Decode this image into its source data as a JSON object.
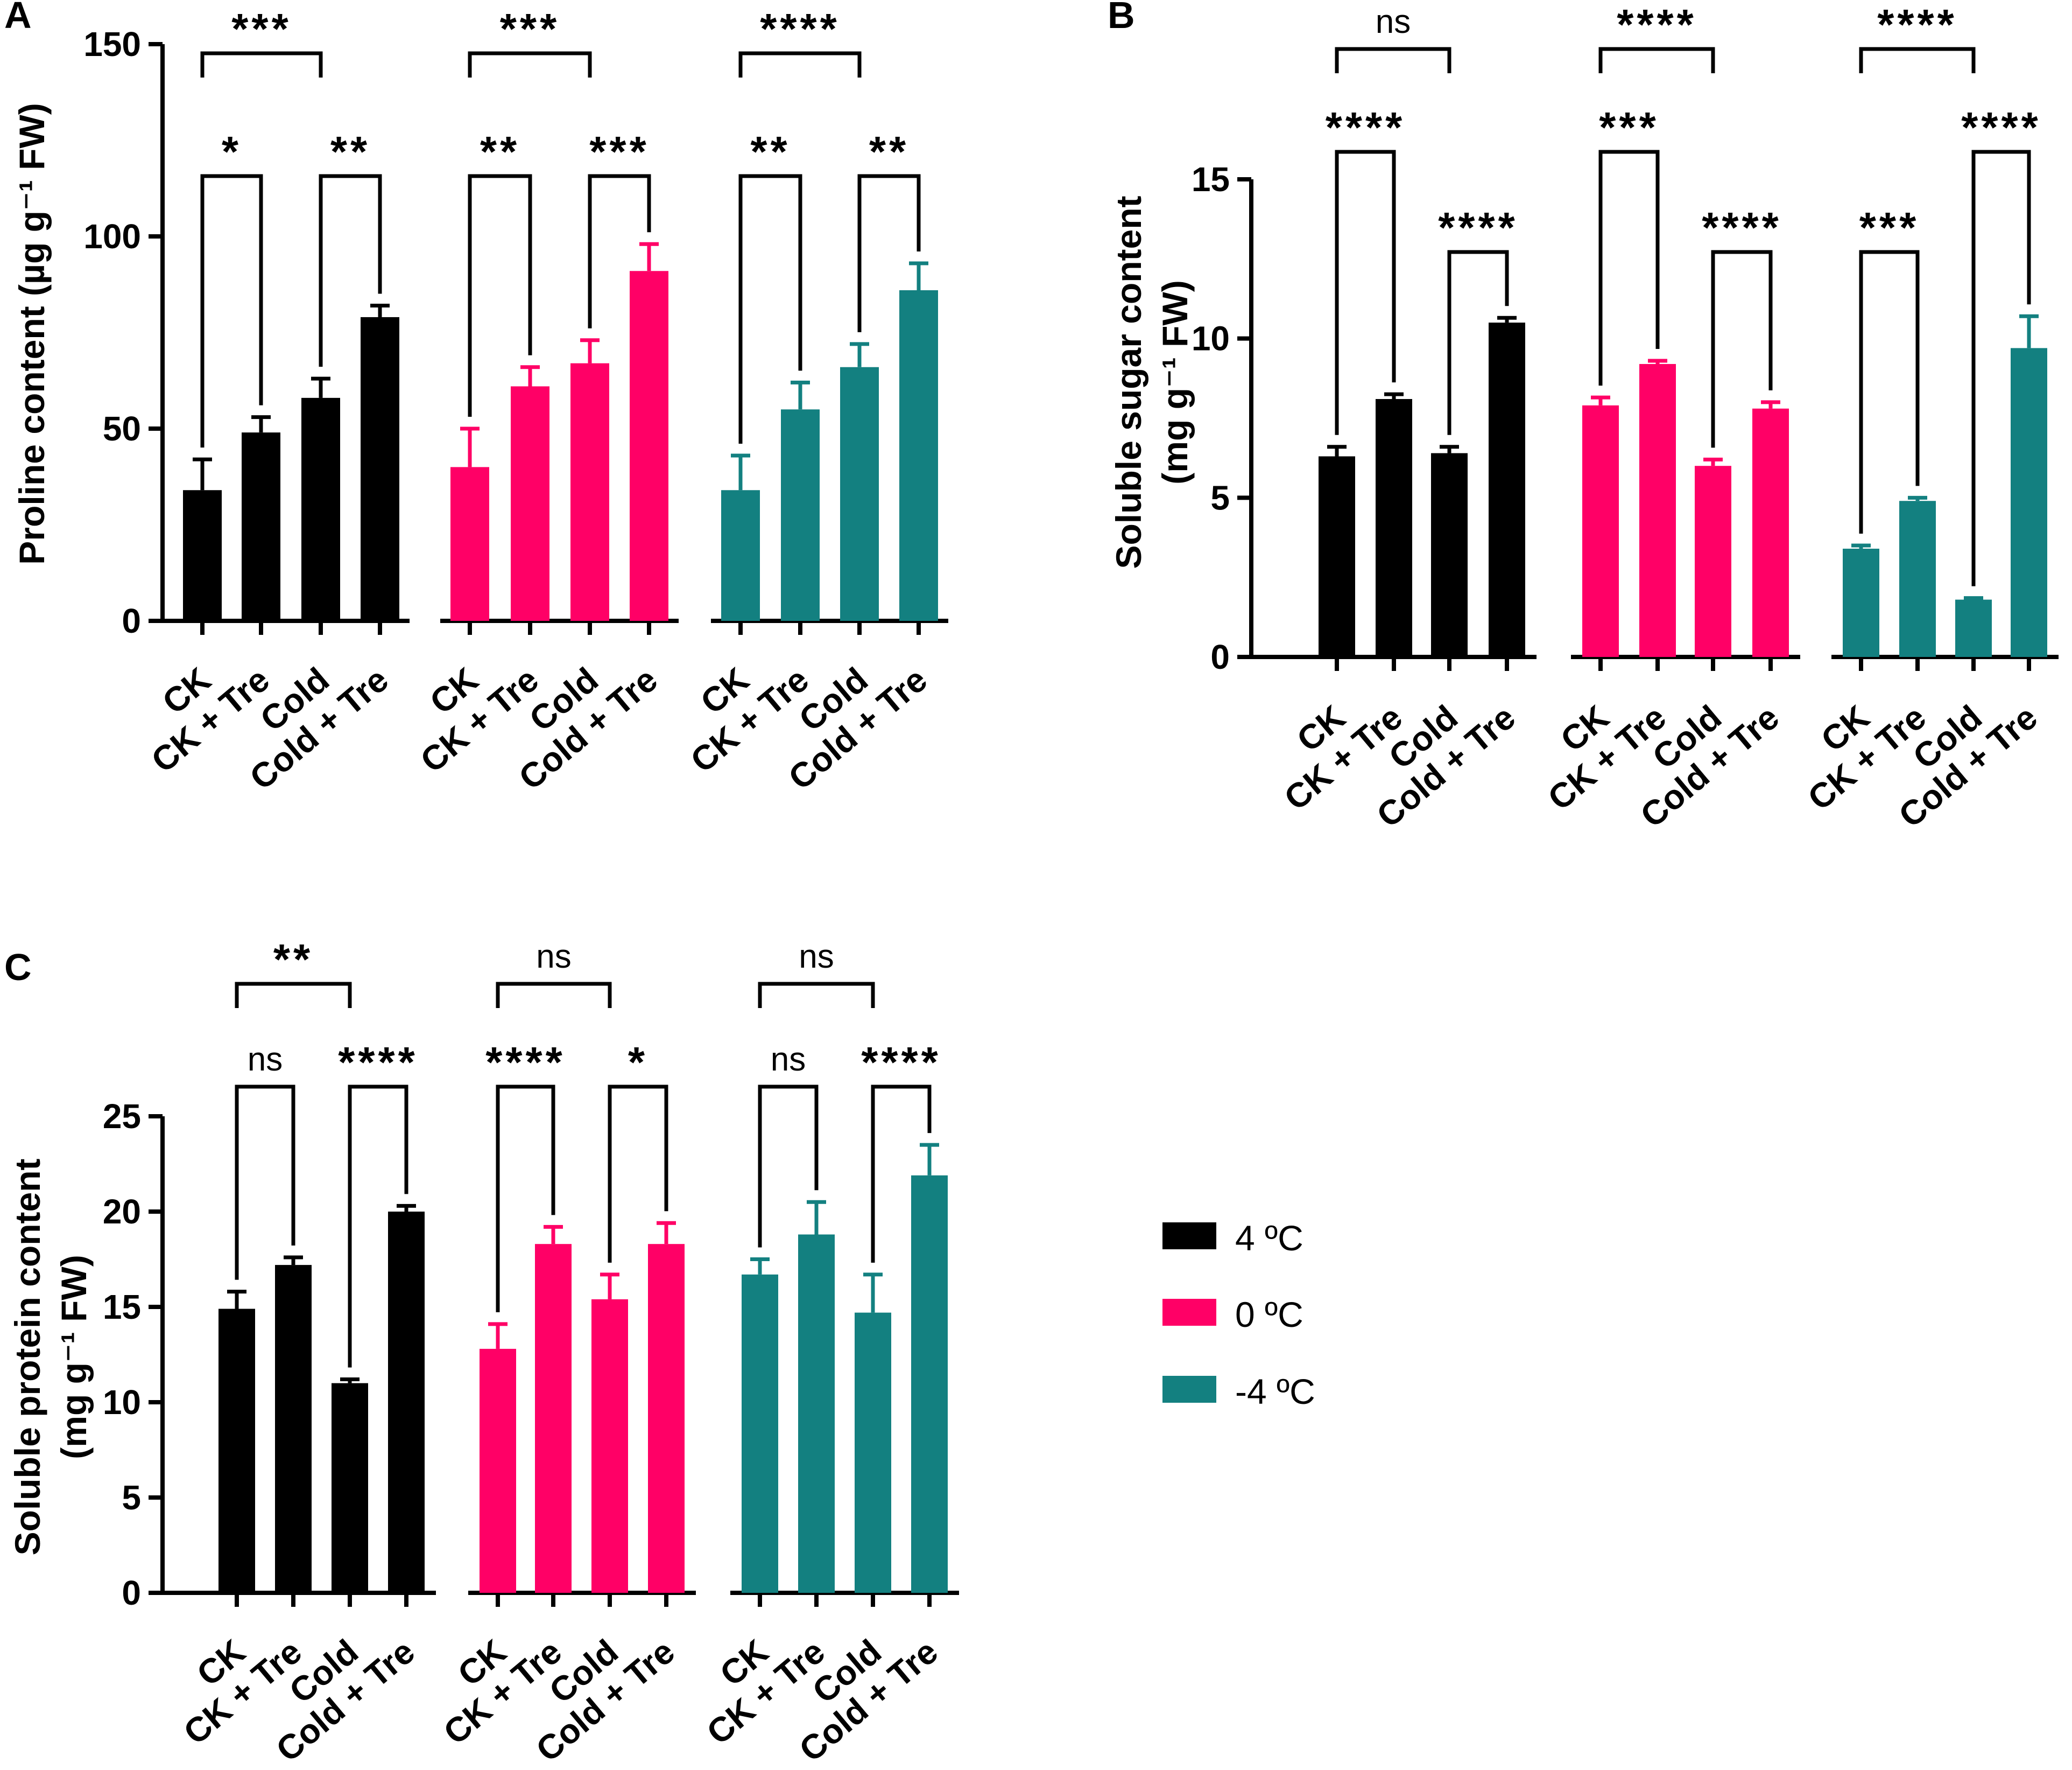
{
  "legend": [
    {
      "label": "4 ºC",
      "color": "#000000"
    },
    {
      "label": "0 ºC",
      "color": "#ff0066"
    },
    {
      "label": "-4 ºC",
      "color": "#138080"
    }
  ],
  "chart_data": [
    {
      "panel": "A",
      "type": "bar",
      "ylabel": "Proline content (µg g⁻¹ FW)",
      "ylim": [
        0,
        150
      ],
      "yticks": [
        0,
        50,
        100,
        150
      ],
      "categories": [
        "CK",
        "CK + Tre",
        "Cold",
        "Cold + Tre"
      ],
      "series": [
        {
          "name": "4 ºC",
          "color": "#000000",
          "values": [
            34,
            49,
            58,
            79
          ],
          "errors": [
            8,
            4,
            5,
            3
          ]
        },
        {
          "name": "0 ºC",
          "color": "#ff0066",
          "values": [
            40,
            61,
            67,
            91
          ],
          "errors": [
            10,
            5,
            6,
            7
          ]
        },
        {
          "name": "-4 ºC",
          "color": "#138080",
          "values": [
            34,
            55,
            66,
            86
          ],
          "errors": [
            9,
            7,
            6,
            7
          ]
        }
      ],
      "comparisons": [
        {
          "group": 0,
          "from": 0,
          "to": 1,
          "level": 1,
          "label": "*"
        },
        {
          "group": 0,
          "from": 2,
          "to": 3,
          "level": 1,
          "label": "**"
        },
        {
          "group": 0,
          "from": 0,
          "to": 2,
          "level": 2,
          "label": "***"
        },
        {
          "group": 1,
          "from": 0,
          "to": 1,
          "level": 1,
          "label": "**"
        },
        {
          "group": 1,
          "from": 2,
          "to": 3,
          "level": 1,
          "label": "***"
        },
        {
          "group": 1,
          "from": 0,
          "to": 2,
          "level": 2,
          "label": "***"
        },
        {
          "group": 2,
          "from": 0,
          "to": 1,
          "level": 1,
          "label": "**"
        },
        {
          "group": 2,
          "from": 2,
          "to": 3,
          "level": 1,
          "label": "**"
        },
        {
          "group": 2,
          "from": 0,
          "to": 2,
          "level": 2,
          "label": "****"
        }
      ]
    },
    {
      "panel": "B",
      "type": "bar",
      "ylabel_line1": "Soluble sugar content",
      "ylabel_line2": "(mg g⁻¹ FW)",
      "ylim": [
        0,
        15
      ],
      "yticks": [
        0,
        5,
        10,
        15
      ],
      "categories": [
        "CK",
        "CK + Tre",
        "Cold",
        "Cold + Tre"
      ],
      "series": [
        {
          "name": "4 ºC",
          "color": "#000000",
          "values": [
            6.3,
            8.1,
            6.4,
            10.5
          ],
          "errors": [
            0.3,
            0.15,
            0.2,
            0.15
          ]
        },
        {
          "name": "0 ºC",
          "color": "#ff0066",
          "values": [
            7.9,
            9.2,
            6.0,
            7.8
          ],
          "errors": [
            0.25,
            0.1,
            0.2,
            0.2
          ]
        },
        {
          "name": "-4 ºC",
          "color": "#138080",
          "values": [
            3.4,
            4.9,
            1.8,
            9.7
          ],
          "errors": [
            0.1,
            0.1,
            0.05,
            1.0
          ]
        }
      ],
      "comparisons": [
        {
          "group": 0,
          "from": 0,
          "to": 1,
          "level": 1,
          "label": "****"
        },
        {
          "group": 0,
          "from": 2,
          "to": 3,
          "level": 0,
          "label": "****"
        },
        {
          "group": 0,
          "from": 0,
          "to": 2,
          "level": 2,
          "label": "ns"
        },
        {
          "group": 1,
          "from": 0,
          "to": 1,
          "level": 1,
          "label": "***"
        },
        {
          "group": 1,
          "from": 2,
          "to": 3,
          "level": 0,
          "label": "****"
        },
        {
          "group": 1,
          "from": 0,
          "to": 2,
          "level": 2,
          "label": "****"
        },
        {
          "group": 2,
          "from": 0,
          "to": 1,
          "level": 0,
          "label": "***"
        },
        {
          "group": 2,
          "from": 2,
          "to": 3,
          "level": 1,
          "label": "****"
        },
        {
          "group": 2,
          "from": 0,
          "to": 2,
          "level": 2,
          "label": "****"
        }
      ]
    },
    {
      "panel": "C",
      "type": "bar",
      "ylabel_line1": "Soluble protein content",
      "ylabel_line2": "(mg g⁻¹ FW)",
      "ylim": [
        0,
        25
      ],
      "yticks": [
        0,
        5,
        10,
        15,
        20,
        25
      ],
      "categories": [
        "CK",
        "CK + Tre",
        "Cold",
        "Cold + Tre"
      ],
      "series": [
        {
          "name": "4 ºC",
          "color": "#000000",
          "values": [
            14.9,
            17.2,
            11.0,
            20.0
          ],
          "errors": [
            0.9,
            0.4,
            0.2,
            0.3
          ]
        },
        {
          "name": "0 ºC",
          "color": "#ff0066",
          "values": [
            12.8,
            18.3,
            15.4,
            18.3
          ],
          "errors": [
            1.3,
            0.9,
            1.3,
            1.1
          ]
        },
        {
          "name": "-4 ºC",
          "color": "#138080",
          "values": [
            16.7,
            18.8,
            14.7,
            21.9
          ],
          "errors": [
            0.8,
            1.7,
            2.0,
            1.6
          ]
        }
      ],
      "comparisons": [
        {
          "group": 0,
          "from": 0,
          "to": 1,
          "level": 1,
          "label": "ns"
        },
        {
          "group": 0,
          "from": 2,
          "to": 3,
          "level": 1,
          "label": "****"
        },
        {
          "group": 0,
          "from": 0,
          "to": 2,
          "level": 2,
          "label": "**"
        },
        {
          "group": 1,
          "from": 0,
          "to": 1,
          "level": 1,
          "label": "****"
        },
        {
          "group": 1,
          "from": 2,
          "to": 3,
          "level": 1,
          "label": "*"
        },
        {
          "group": 1,
          "from": 0,
          "to": 2,
          "level": 2,
          "label": "ns"
        },
        {
          "group": 2,
          "from": 0,
          "to": 1,
          "level": 1,
          "label": "ns"
        },
        {
          "group": 2,
          "from": 2,
          "to": 3,
          "level": 1,
          "label": "****"
        },
        {
          "group": 2,
          "from": 0,
          "to": 2,
          "level": 2,
          "label": "ns"
        }
      ]
    }
  ]
}
